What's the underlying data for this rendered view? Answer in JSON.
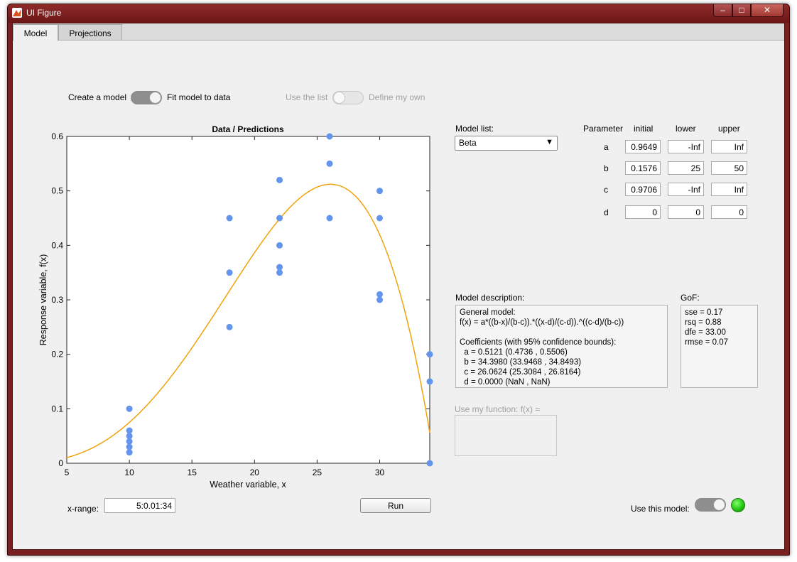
{
  "window": {
    "title": "UI Figure",
    "minimize": "–",
    "maximize": "□",
    "close": "✕"
  },
  "tabs": [
    {
      "label": "Model"
    },
    {
      "label": "Projections"
    }
  ],
  "switches": {
    "create_label": "Create a model",
    "fit_label": "Fit model to data",
    "use_list_label": "Use the list",
    "define_label": "Define my own"
  },
  "chart_data": {
    "type": "scatter",
    "title": "Data / Predictions",
    "xlabel": "Weather variable, x",
    "ylabel": "Response variable, f(x)",
    "xlim": [
      5,
      34
    ],
    "ylim": [
      0,
      0.6
    ],
    "xticks": [
      "5",
      "10",
      "15",
      "20",
      "25",
      "30"
    ],
    "yticks": [
      "0",
      "0.1",
      "0.2",
      "0.3",
      "0.4",
      "0.5",
      "0.6"
    ],
    "xtick_values": [
      5,
      10,
      15,
      20,
      25,
      30
    ],
    "ytick_values": [
      0,
      0.1,
      0.2,
      0.3,
      0.4,
      0.5,
      0.6
    ],
    "marker_color": "#6495ed",
    "line_color": "#f0a30a",
    "points": [
      [
        10,
        0.1
      ],
      [
        10,
        0.06
      ],
      [
        10,
        0.05
      ],
      [
        10,
        0.04
      ],
      [
        10,
        0.03
      ],
      [
        10,
        0.02
      ],
      [
        18,
        0.45
      ],
      [
        18,
        0.35
      ],
      [
        18,
        0.25
      ],
      [
        22,
        0.52
      ],
      [
        22,
        0.45
      ],
      [
        22,
        0.4
      ],
      [
        22,
        0.36
      ],
      [
        22,
        0.35
      ],
      [
        26,
        0.6
      ],
      [
        26,
        0.55
      ],
      [
        26,
        0.45
      ],
      [
        30,
        0.5
      ],
      [
        30,
        0.45
      ],
      [
        30,
        0.31
      ],
      [
        30,
        0.3
      ],
      [
        34,
        0.2
      ],
      [
        34,
        0.15
      ],
      [
        34,
        0.0
      ]
    ],
    "model": {
      "a": 0.5121,
      "b": 34.398,
      "c": 26.0624,
      "d": 0.0
    }
  },
  "model_list": {
    "label": "Model list:",
    "selected": "Beta",
    "arrow": "▼"
  },
  "params": {
    "headers": [
      "Parameter",
      "initial",
      "lower",
      "upper"
    ],
    "rows": [
      {
        "name": "a",
        "initial": "0.9649",
        "lower": "-Inf",
        "upper": "Inf"
      },
      {
        "name": "b",
        "initial": "0.1576",
        "lower": "25",
        "upper": "50"
      },
      {
        "name": "c",
        "initial": "0.9706",
        "lower": "-Inf",
        "upper": "Inf"
      },
      {
        "name": "d",
        "initial": "0",
        "lower": "0",
        "upper": "0"
      }
    ]
  },
  "description": {
    "label": "Model description:",
    "lines": [
      "General model:",
      "f(x) = a*((b-x)/(b-c)).*((x-d)/(c-d)).^((c-d)/(b-c))",
      "",
      "Coefficients (with 95% confidence bounds):",
      "  a = 0.5121 (0.4736 , 0.5506)",
      "  b = 34.3980 (33.9468 , 34.8493)",
      "  c = 26.0624 (25.3084 , 26.8164)",
      "  d = 0.0000 (NaN , NaN)"
    ]
  },
  "gof": {
    "label": "GoF:",
    "lines": [
      "sse = 0.17",
      "rsq = 0.88",
      "dfe = 33.00",
      "rmse = 0.07"
    ]
  },
  "myfunc": {
    "label": "Use my function: f(x) ="
  },
  "xrange": {
    "label": "x-range:",
    "value": "5:0.01:34"
  },
  "run": {
    "label": "Run"
  },
  "use_model": {
    "label": "Use this model:"
  },
  "colors": {
    "lamp": "#1ec20e",
    "window": "#7a1f1f"
  }
}
